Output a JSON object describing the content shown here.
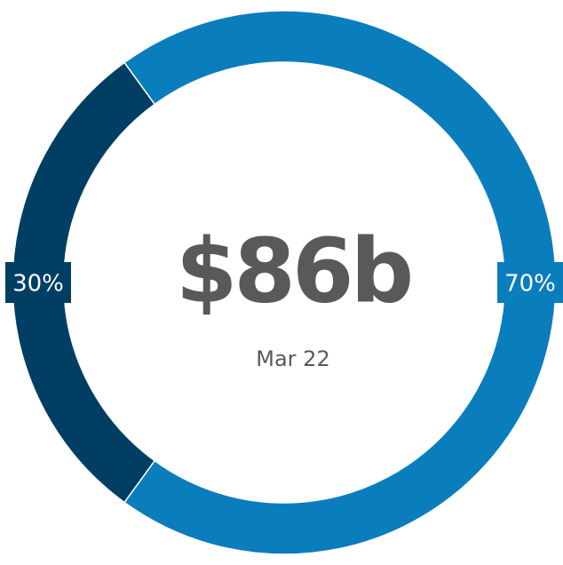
{
  "chart_data": {
    "type": "donut",
    "title": "$86b",
    "subtitle": "Mar 22",
    "values": [
      30,
      70
    ],
    "value_labels": [
      "30%",
      "70%"
    ],
    "colors": [
      "#003f63",
      "#0a7dbd"
    ]
  }
}
